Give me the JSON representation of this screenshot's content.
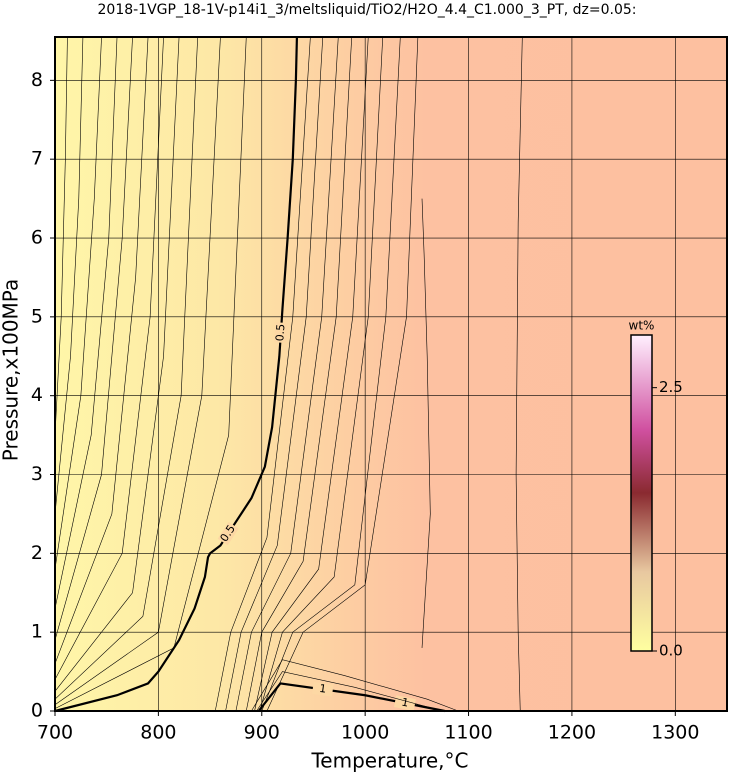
{
  "chart_data": {
    "type": "contour",
    "title": "2018-1VGP_18-1V-p14i1_3/meltsliquid/TiO2/H2O_4.4_C1.000_3_PT, dz=0.05:",
    "xlabel": "Temperature,°C",
    "ylabel": "Pressure,x100MPa",
    "xlim": [
      700,
      1350
    ],
    "ylim": [
      0,
      8.55
    ],
    "xticks": [
      700,
      800,
      900,
      1000,
      1100,
      1200,
      1300
    ],
    "yticks": [
      0,
      1,
      2,
      3,
      4,
      5,
      6,
      7,
      8
    ],
    "grid": true,
    "colorbar": {
      "label": "wt%",
      "clim": [
        0,
        3.0
      ],
      "ticks": [
        {
          "value": 0,
          "label": "0.0"
        },
        {
          "value": 2.5,
          "label": "2.5"
        }
      ]
    },
    "contours": [
      {
        "level": 0.5,
        "x": [
          700,
          760,
          790,
          800,
          820,
          835,
          845,
          848,
          850,
          860,
          875,
          890,
          903,
          910,
          917,
          920,
          925,
          930,
          933,
          934
        ],
        "y": [
          0,
          0.2,
          0.35,
          0.5,
          0.9,
          1.3,
          1.7,
          1.95,
          2.0,
          2.1,
          2.4,
          2.7,
          3.1,
          3.6,
          4.5,
          5.1,
          6,
          7,
          8,
          8.55
        ]
      },
      {
        "level": 1,
        "x": [
          897,
          918,
          1000,
          1077
        ],
        "y": [
          0,
          0.35,
          0.2,
          0
        ]
      },
      {
        "x": [
          700,
          706,
          710,
          712
        ],
        "y": [
          3.5,
          5,
          7,
          8.55
        ]
      },
      {
        "x": [
          700,
          715,
          723,
          727
        ],
        "y": [
          2.5,
          4.5,
          6.5,
          8.55
        ]
      },
      {
        "x": [
          700,
          725,
          738,
          745
        ],
        "y": [
          1.8,
          4,
          6.5,
          8.55
        ]
      },
      {
        "x": [
          700,
          735,
          752,
          760
        ],
        "y": [
          1.3,
          3.5,
          6,
          8.55
        ]
      },
      {
        "x": [
          700,
          745,
          765,
          775
        ],
        "y": [
          0.9,
          3,
          6,
          8.55
        ]
      },
      {
        "x": [
          700,
          755,
          778,
          790
        ],
        "y": [
          0.6,
          2.5,
          5.5,
          8.55
        ]
      },
      {
        "x": [
          700,
          765,
          792,
          805
        ],
        "y": [
          0.4,
          2,
          5,
          8.55
        ]
      },
      {
        "x": [
          700,
          775,
          805,
          820
        ],
        "y": [
          0.25,
          1.5,
          4.5,
          8.55
        ]
      },
      {
        "x": [
          700,
          785,
          822,
          838
        ],
        "y": [
          0.15,
          1.2,
          4,
          8.55
        ]
      },
      {
        "x": [
          700,
          800,
          842,
          860
        ],
        "y": [
          0.08,
          1,
          4,
          8.55
        ]
      },
      {
        "x": [
          700,
          815,
          868,
          885
        ],
        "y": [
          0.03,
          0.8,
          3.5,
          8.55
        ]
      },
      {
        "x": [
          855,
          870,
          905,
          930,
          947
        ],
        "y": [
          0,
          1,
          2.2,
          5,
          8.55
        ]
      },
      {
        "x": [
          865,
          880,
          915,
          943,
          959
        ],
        "y": [
          0,
          1,
          2.1,
          5,
          8.55
        ]
      },
      {
        "x": [
          875,
          890,
          928,
          958,
          974
        ],
        "y": [
          0,
          1,
          2,
          5,
          8.55
        ]
      },
      {
        "x": [
          885,
          900,
          940,
          972,
          987
        ],
        "y": [
          0,
          1,
          1.9,
          5,
          8.55
        ]
      },
      {
        "x": [
          893,
          910,
          955,
          988,
          1003
        ],
        "y": [
          0,
          1,
          1.8,
          5,
          8.55
        ]
      },
      {
        "x": [
          898,
          920,
          970,
          1003,
          1017
        ],
        "y": [
          0,
          1,
          1.7,
          5,
          8.55
        ]
      },
      {
        "x": [
          900,
          930,
          990,
          1020,
          1034
        ],
        "y": [
          0,
          1,
          1.6,
          5,
          8.55
        ]
      },
      {
        "x": [
          905,
          940,
          1000,
          1040,
          1051
        ],
        "y": [
          0,
          1,
          1.6,
          5,
          8.55
        ]
      },
      {
        "x": [
          1055,
          1063,
          1060,
          1057,
          1055
        ],
        "y": [
          0.8,
          2.5,
          4.5,
          5.8,
          6.5
        ]
      },
      {
        "x": [
          1150,
          1148,
          1146,
          1148,
          1152
        ],
        "y": [
          0,
          1,
          3,
          6.2,
          8.55
        ]
      },
      {
        "x": [
          890,
          920,
          980,
          1060,
          1090
        ],
        "y": [
          0,
          0.65,
          0.45,
          0.15,
          0
        ]
      },
      {
        "x": [
          895,
          920,
          990,
          1075
        ],
        "y": [
          0,
          0.5,
          0.3,
          0
        ]
      }
    ]
  }
}
